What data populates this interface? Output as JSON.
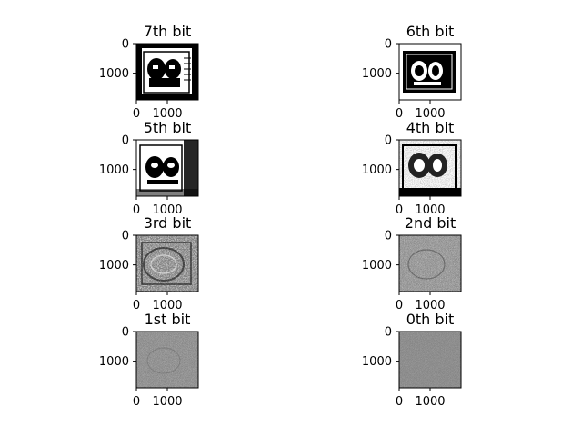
{
  "chart_data": {
    "type": "heatmap",
    "grid": {
      "rows": 4,
      "cols": 2
    },
    "panels": [
      {
        "title": "7th bit",
        "x_ticks": [
          "0",
          "1000"
        ],
        "y_ticks": [
          "0",
          "1000"
        ],
        "xlim": [
          0,
          2000
        ],
        "ylim": [
          1900,
          0
        ],
        "pattern": "bit7-portrait-high-contrast"
      },
      {
        "title": "6th bit",
        "x_ticks": [
          "0",
          "1000"
        ],
        "y_ticks": [
          "0",
          "1000"
        ],
        "xlim": [
          0,
          2000
        ],
        "ylim": [
          1900,
          0
        ],
        "pattern": "bit6-portrait-inverted"
      },
      {
        "title": "5th bit",
        "x_ticks": [
          "0",
          "1000"
        ],
        "y_ticks": [
          "0",
          "1000"
        ],
        "xlim": [
          0,
          2000
        ],
        "ylim": [
          1900,
          0
        ],
        "pattern": "bit5-portrait"
      },
      {
        "title": "4th bit",
        "x_ticks": [
          "0",
          "1000"
        ],
        "y_ticks": [
          "0",
          "1000"
        ],
        "xlim": [
          0,
          2000
        ],
        "ylim": [
          1900,
          0
        ],
        "pattern": "bit4-portrait-textured"
      },
      {
        "title": "3rd bit",
        "x_ticks": [
          "0",
          "1000"
        ],
        "y_ticks": [
          "0",
          "1000"
        ],
        "xlim": [
          0,
          2000
        ],
        "ylim": [
          1900,
          0
        ],
        "pattern": "bit3-noisy-structure"
      },
      {
        "title": "2nd bit",
        "x_ticks": [
          "0",
          "1000"
        ],
        "y_ticks": [
          "0",
          "1000"
        ],
        "xlim": [
          0,
          2000
        ],
        "ylim": [
          1900,
          0
        ],
        "pattern": "bit2-faint-structure"
      },
      {
        "title": "1st bit",
        "x_ticks": [
          "0",
          "1000"
        ],
        "y_ticks": [
          "0",
          "1000"
        ],
        "xlim": [
          0,
          2000
        ],
        "ylim": [
          1900,
          0
        ],
        "pattern": "bit1-mostly-noise"
      },
      {
        "title": "0th bit",
        "x_ticks": [
          "0",
          "1000"
        ],
        "y_ticks": [
          "0",
          "1000"
        ],
        "xlim": [
          0,
          2000
        ],
        "ylim": [
          1900,
          0
        ],
        "pattern": "bit0-pure-noise"
      }
    ],
    "colormap": "gray",
    "grid_lines": false,
    "legend": "none"
  }
}
